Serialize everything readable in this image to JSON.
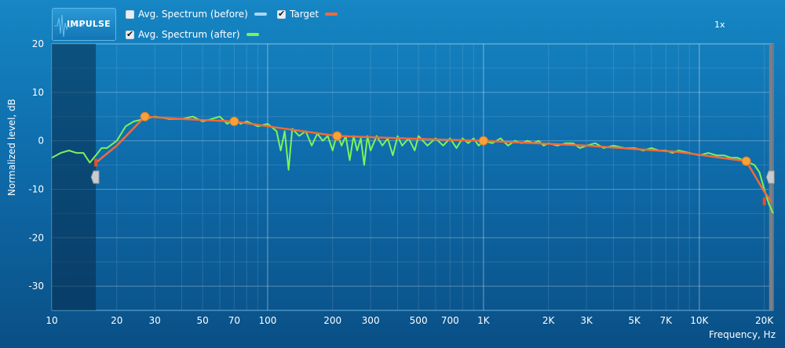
{
  "toolbar": {
    "impulse_label": "IMPULSE",
    "zoom": "1x"
  },
  "legend": [
    {
      "label": "Avg. Spectrum (before)",
      "checked": false,
      "color": "#a9d8f2"
    },
    {
      "label": "Target",
      "checked": true,
      "color": "#f06a3a"
    },
    {
      "label": "Avg. Spectrum (after)",
      "checked": true,
      "color": "#7cf25a"
    }
  ],
  "chart_data": {
    "type": "line",
    "xlabel": "Frequency, Hz",
    "ylabel": "Normalized level, dB",
    "xscale": "log",
    "xlim": [
      10,
      22000
    ],
    "ylim": [
      -35,
      20
    ],
    "grid": true,
    "x_ticks": [
      10,
      20,
      30,
      50,
      70,
      100,
      200,
      300,
      500,
      700,
      1000,
      2000,
      3000,
      5000,
      7000,
      10000,
      20000
    ],
    "x_tick_labels": [
      "10",
      "20",
      "30",
      "50",
      "70",
      "100",
      "200",
      "300",
      "500",
      "700",
      "1K",
      "2K",
      "3K",
      "5K",
      "7K",
      "10K",
      "20K"
    ],
    "y_ticks": [
      20,
      10,
      0,
      -10,
      -20,
      -30
    ],
    "y_tick_labels": [
      "20",
      "10",
      "0",
      "-10",
      "-20",
      "-30"
    ],
    "excluded_regions": [
      [
        10,
        16
      ],
      [
        21500,
        22000
      ]
    ],
    "series": [
      {
        "name": "Target",
        "color": "#f06a3a",
        "x": [
          16,
          20,
          27,
          40,
          70,
          120,
          210,
          500,
          1000,
          3000,
          8000,
          16500,
          20000,
          21500
        ],
        "y": [
          -4.5,
          -1,
          5,
          4.5,
          4,
          2.5,
          1,
          0.4,
          0,
          -1,
          -2.3,
          -4.2,
          -10.5,
          -12.5
        ],
        "control_points": {
          "x": [
            16,
            27,
            70,
            210,
            1000,
            16500,
            20000
          ],
          "y": [
            -4.5,
            5,
            4,
            1,
            0,
            -4.2,
            -12.5
          ]
        }
      },
      {
        "name": "Avg. Spectrum (after)",
        "color": "#7cf25a",
        "x": [
          10,
          11,
          12,
          13,
          14,
          15,
          16,
          17,
          18,
          20,
          22,
          24,
          27,
          30,
          35,
          40,
          45,
          50,
          55,
          60,
          65,
          70,
          75,
          80,
          90,
          100,
          110,
          115,
          120,
          125,
          130,
          140,
          150,
          160,
          170,
          180,
          190,
          200,
          210,
          220,
          230,
          240,
          250,
          260,
          270,
          280,
          290,
          300,
          320,
          340,
          360,
          380,
          400,
          420,
          450,
          480,
          500,
          550,
          600,
          650,
          700,
          750,
          800,
          850,
          900,
          950,
          1000,
          1100,
          1200,
          1300,
          1400,
          1500,
          1600,
          1700,
          1800,
          1900,
          2000,
          2200,
          2400,
          2600,
          2800,
          3000,
          3300,
          3600,
          4000,
          4500,
          5000,
          5500,
          6000,
          6500,
          7000,
          7500,
          8000,
          9000,
          10000,
          11000,
          12000,
          13000,
          14000,
          15000,
          16000,
          16500,
          17000,
          18000,
          19000,
          20000,
          21000,
          22000
        ],
        "y": [
          -3.5,
          -2.5,
          -2,
          -2.5,
          -2.5,
          -4.5,
          -3,
          -1.5,
          -1.5,
          0,
          3,
          4,
          4.5,
          5,
          4.5,
          4.5,
          5,
          4,
          4.5,
          5,
          3.5,
          4.5,
          3.5,
          4,
          3,
          3.5,
          2,
          -2,
          2,
          -6,
          2.5,
          1,
          2,
          -1,
          1.5,
          0,
          1,
          -2,
          1.5,
          -1,
          1,
          -4,
          1,
          -2,
          0.5,
          -5,
          1,
          -2,
          1,
          -1,
          0.5,
          -3,
          1,
          -1,
          0.5,
          -2,
          1,
          -1,
          0.5,
          -1,
          0.5,
          -1.5,
          0.5,
          -0.5,
          0.5,
          -1,
          0,
          -0.5,
          0.5,
          -1,
          0,
          -0.5,
          0,
          -0.5,
          0,
          -1,
          -0.5,
          -1,
          -0.5,
          -0.5,
          -1.5,
          -1,
          -0.5,
          -1.5,
          -1,
          -1.5,
          -1.5,
          -2,
          -1.5,
          -2,
          -2,
          -2.5,
          -2,
          -2.5,
          -3,
          -2.5,
          -3,
          -3,
          -3.5,
          -3.5,
          -4,
          -4,
          -4.5,
          -5,
          -6.5,
          -10,
          -13,
          -15
        ]
      }
    ]
  }
}
